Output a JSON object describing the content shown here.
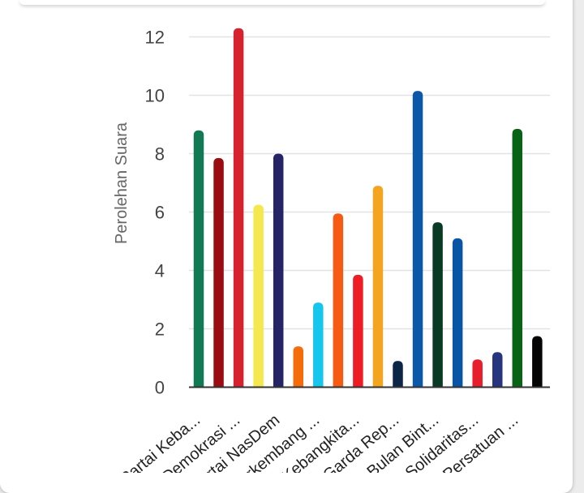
{
  "chart_data": {
    "type": "bar",
    "title": "",
    "xlabel": "",
    "ylabel": "Perolehan Suara",
    "ylim": [
      0,
      12
    ],
    "yticks": [
      0,
      2,
      4,
      6,
      8,
      10,
      12
    ],
    "grid": true,
    "legend": "none",
    "categories": [
      "Partai Keba...",
      "Demokrasi ...",
      "Partai NasDem",
      "Berkembang ...",
      "Kebangkita...",
      "Garda Rep...",
      "Bulan Bint...",
      "Solidaritas...",
      "Persatuan ..."
    ],
    "bars": [
      {
        "value": 8.8,
        "color": "#117a55"
      },
      {
        "value": 7.85,
        "color": "#9b0c12"
      },
      {
        "value": 12.3,
        "color": "#d6222f"
      },
      {
        "value": 6.25,
        "color": "#f5e84e"
      },
      {
        "value": 8.0,
        "color": "#262466"
      },
      {
        "value": 1.4,
        "color": "#f56c0b"
      },
      {
        "value": 2.9,
        "color": "#17c6ec"
      },
      {
        "value": 5.95,
        "color": "#f65a13"
      },
      {
        "value": 3.85,
        "color": "#ee1c24"
      },
      {
        "value": 6.9,
        "color": "#f3a51f"
      },
      {
        "value": 0.9,
        "color": "#0c2648"
      },
      {
        "value": 10.15,
        "color": "#0b58a8"
      },
      {
        "value": 5.65,
        "color": "#083a24"
      },
      {
        "value": 5.1,
        "color": "#0955a5"
      },
      {
        "value": 0.95,
        "color": "#e71e2c"
      },
      {
        "value": 1.2,
        "color": "#27357e"
      },
      {
        "value": 8.85,
        "color": "#086316"
      },
      {
        "value": 1.75,
        "color": "#050505"
      }
    ]
  }
}
